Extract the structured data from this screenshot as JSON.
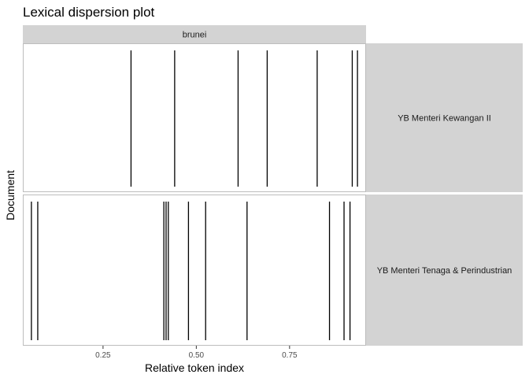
{
  "chart_data": {
    "type": "lexical-dispersion",
    "title": "Lexical dispersion plot",
    "xlabel": "Relative token index",
    "ylabel": "Document",
    "xlim": [
      0.035,
      0.955
    ],
    "x_ticks": [
      0.25,
      0.5,
      0.75
    ],
    "x_tick_labels": [
      "0.25",
      "0.50",
      "0.75"
    ],
    "column_facets": [
      "brunei"
    ],
    "grid": false,
    "series": [
      {
        "document": "YB Menteri Kewangan II",
        "term": "brunei",
        "x": [
          0.325,
          0.442,
          0.612,
          0.69,
          0.824,
          0.918,
          0.932
        ]
      },
      {
        "document": "YB Menteri Tenaga & Perindustrian",
        "term": "brunei",
        "x": [
          0.058,
          0.075,
          0.413,
          0.419,
          0.425,
          0.479,
          0.525,
          0.636,
          0.857,
          0.896,
          0.912
        ]
      }
    ],
    "colors": {
      "strip": "#d3d3d3",
      "panel_border": "#bdbdbd",
      "line": "#000000",
      "tick": "#333333"
    }
  }
}
